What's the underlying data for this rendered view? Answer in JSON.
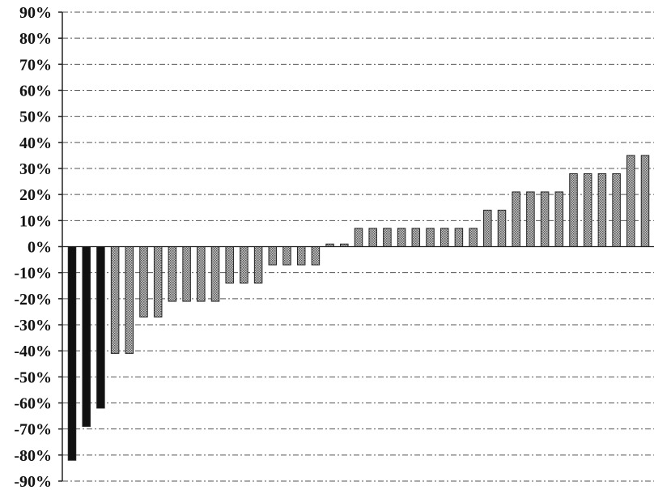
{
  "chart_data": {
    "type": "bar",
    "title": "",
    "xlabel": "",
    "ylabel": "",
    "ylim": [
      -90,
      90
    ],
    "y_ticks": [
      "90%",
      "80%",
      "70%",
      "60%",
      "50%",
      "40%",
      "30%",
      "20%",
      "10%",
      "0%",
      "-10%",
      "-20%",
      "-30%",
      "-40%",
      "-50%",
      "-60%",
      "-70%",
      "-80%",
      "-90%"
    ],
    "y_tick_values": [
      90,
      80,
      70,
      60,
      50,
      40,
      30,
      20,
      10,
      0,
      -10,
      -20,
      -30,
      -40,
      -50,
      -60,
      -70,
      -80,
      -90
    ],
    "grid": true,
    "values": [
      -82,
      -69,
      -62,
      -41,
      -41,
      -27,
      -27,
      -21,
      -21,
      -21,
      -21,
      -14,
      -14,
      -14,
      -7,
      -7,
      -7,
      -7,
      1,
      1,
      7,
      7,
      7,
      7,
      7,
      7,
      7,
      7,
      7,
      14,
      14,
      21,
      21,
      21,
      21,
      28,
      28,
      28,
      28,
      35,
      35,
      35
    ],
    "colors": {
      "dark_bar": "#111111",
      "hatched_bar": "#8c8c8c",
      "bar_outline": "#222222",
      "grid": "#555555",
      "axis": "#222222"
    }
  }
}
